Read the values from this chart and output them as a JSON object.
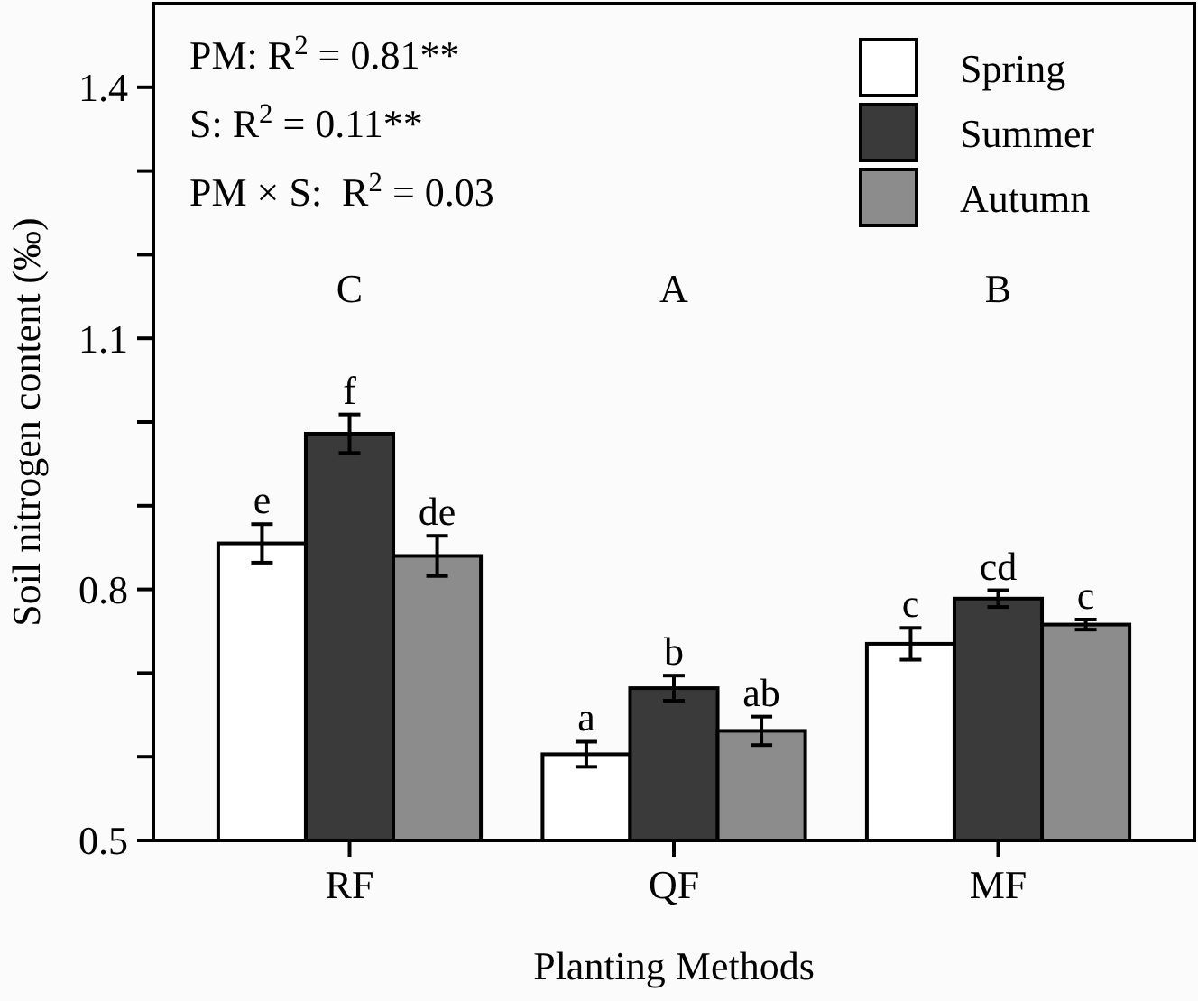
{
  "chart_data": {
    "type": "bar",
    "xlabel": "Planting Methods",
    "ylabel": "Soil nitrogen content (‰)",
    "categories": [
      "RF",
      "QF",
      "MF"
    ],
    "series": [
      {
        "name": "Spring",
        "color": "#ffffff",
        "values": [
          0.855,
          0.603,
          0.735
        ],
        "errors": [
          0.023,
          0.015,
          0.019
        ],
        "value_labels": [
          "e",
          "a",
          "c"
        ]
      },
      {
        "name": "Summer",
        "color": "#3a3a3a",
        "values": [
          0.986,
          0.682,
          0.789
        ],
        "errors": [
          0.023,
          0.015,
          0.01
        ],
        "value_labels": [
          "f",
          "b",
          "cd"
        ]
      },
      {
        "name": "Autumn",
        "color": "#8c8c8c",
        "values": [
          0.84,
          0.631,
          0.758
        ],
        "errors": [
          0.024,
          0.017,
          0.006
        ],
        "value_labels": [
          "de",
          "ab",
          "c"
        ]
      }
    ],
    "ylim": [
      0.5,
      1.5
    ],
    "yticks": [
      0.5,
      {
        "value": 0.6,
        "label": null
      },
      {
        "value": 0.7,
        "label": null
      },
      0.8,
      {
        "value": 0.9,
        "label": null
      },
      {
        "value": 1.0,
        "label": null
      },
      1.1,
      {
        "value": 1.2,
        "label": null
      },
      {
        "value": 1.3,
        "label": null
      },
      1.4
    ],
    "legend": "top right",
    "grid": false,
    "annotations": [
      "PM: R$^{2}$ = 0.81**",
      "S: R$^{2}$ = 0.11**",
      "PM × S:  R$^{2}$ = 0.03",
      "C",
      "A",
      "B"
    ]
  }
}
